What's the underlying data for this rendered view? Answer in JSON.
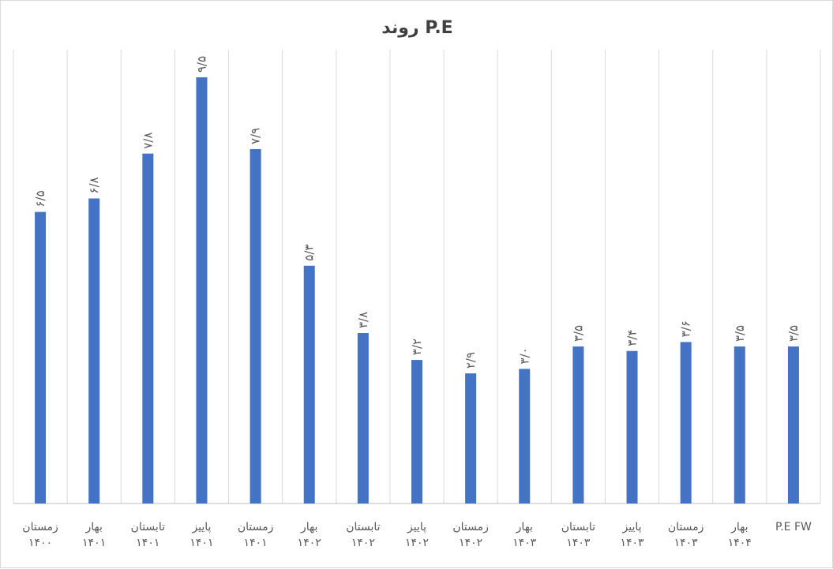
{
  "chart_data": {
    "type": "bar",
    "title": "روند P.E",
    "categories": [
      "زمستان ۱۴۰۰",
      "بهار ۱۴۰۱",
      "تابستان ۱۴۰۱",
      "پاییز ۱۴۰۱",
      "زمستان ۱۴۰۱",
      "بهار ۱۴۰۲",
      "تابستان ۱۴۰۲",
      "پاییز ۱۴۰۲",
      "زمستان ۱۴۰۲",
      "بهار ۱۴۰۳",
      "تابستان ۱۴۰۳",
      "پاییز ۱۴۰۳",
      "زمستان ۱۴۰۳",
      "بهار ۱۴۰۴",
      "P.E FW"
    ],
    "values": [
      6.5,
      6.8,
      7.8,
      9.5,
      7.9,
      5.3,
      3.8,
      3.2,
      2.9,
      3.0,
      3.5,
      3.4,
      3.6,
      3.5,
      3.5
    ],
    "data_labels": [
      "۶/۵",
      "۶/۸",
      "۷/۸",
      "۹/۵",
      "۷/۹",
      "۵/۳",
      "۳/۸",
      "۳/۲",
      "۲/۹",
      "۳/۰",
      "۳/۵",
      "۳/۴",
      "۳/۶",
      "۳/۵",
      "۳/۵"
    ],
    "ylim": [
      0,
      9.5
    ],
    "xlabel": "",
    "ylabel": "",
    "grid": "vertical",
    "colors": {
      "bar": "#4472c4",
      "grid": "#d9d9d9",
      "axis": "#bfbfbf",
      "text": "#595959"
    }
  }
}
